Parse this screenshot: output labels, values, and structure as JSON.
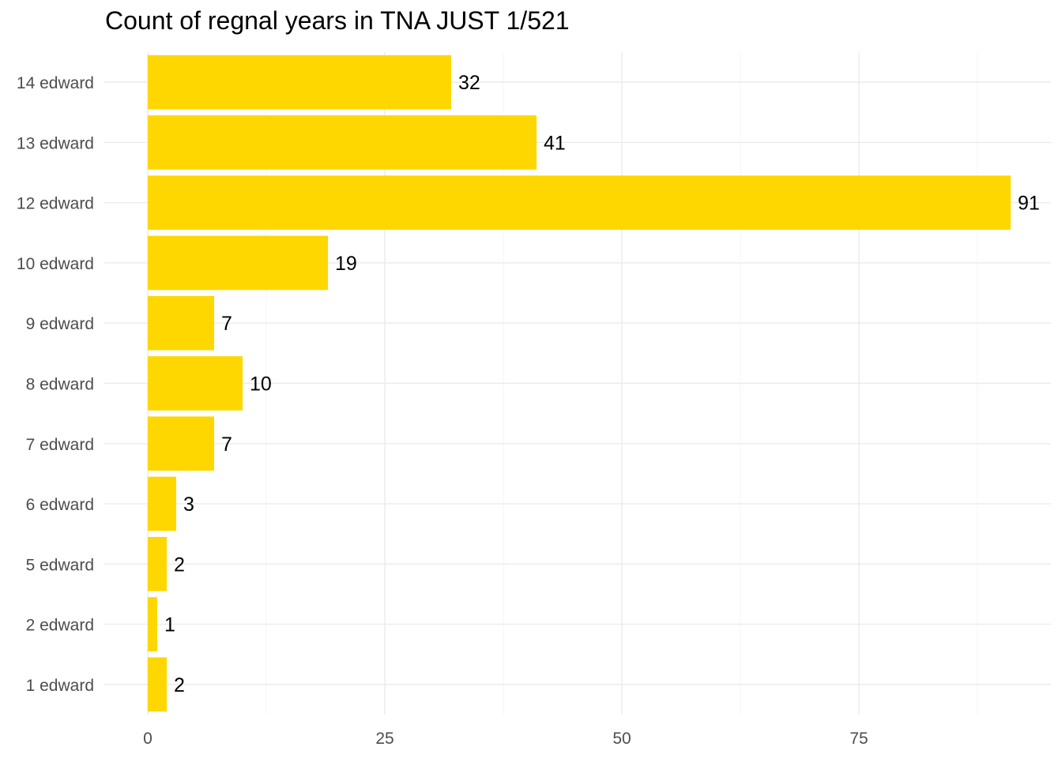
{
  "chart_data": {
    "type": "bar",
    "orientation": "horizontal",
    "title": "Count of regnal years in TNA JUST 1/521",
    "xlabel": "",
    "ylabel": "",
    "categories": [
      "1 edward",
      "2 edward",
      "5 edward",
      "6 edward",
      "7 edward",
      "8 edward",
      "9 edward",
      "10 edward",
      "12 edward",
      "13 edward",
      "14 edward"
    ],
    "values": [
      2,
      1,
      2,
      3,
      7,
      10,
      7,
      19,
      91,
      41,
      32
    ],
    "data_labels": [
      "2",
      "1",
      "2",
      "3",
      "7",
      "10",
      "7",
      "19",
      "91",
      "41",
      "32"
    ],
    "xlim": [
      0,
      95
    ],
    "x_ticks": [
      0,
      25,
      50,
      75
    ],
    "x_tick_labels": [
      "0",
      "25",
      "50",
      "75"
    ],
    "grid": true,
    "legend": "none",
    "colors": {
      "bar": "#FFD700",
      "grid_major": "#ebebeb",
      "grid_minor": "#f4f4f4",
      "tick_text": "#4d4d4d",
      "label_text": "#000000"
    }
  }
}
